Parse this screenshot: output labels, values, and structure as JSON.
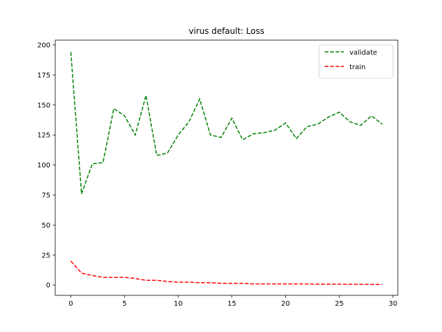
{
  "chart_data": {
    "type": "line",
    "title": "virus default: Loss",
    "xlabel": "",
    "ylabel": "",
    "xlim": [
      -1.45,
      30.45
    ],
    "ylim": [
      -8.5,
      204
    ],
    "xticks": [
      0,
      5,
      10,
      15,
      20,
      25,
      30
    ],
    "yticks": [
      0,
      25,
      50,
      75,
      100,
      125,
      150,
      175,
      200
    ],
    "grid": false,
    "legend_position": "top-right",
    "series": [
      {
        "name": "validate",
        "color": "#008000",
        "dash": "dashed",
        "x": [
          0,
          1,
          2,
          3,
          4,
          5,
          6,
          7,
          8,
          9,
          10,
          11,
          12,
          13,
          14,
          15,
          16,
          17,
          18,
          19,
          20,
          21,
          22,
          23,
          24,
          25,
          26,
          27,
          28,
          29
        ],
        "y": [
          194,
          76,
          101,
          102,
          147,
          141,
          125,
          158,
          108,
          110,
          125,
          136,
          155,
          125,
          123,
          139,
          121,
          126,
          127,
          129,
          135,
          122,
          132,
          134,
          140,
          144,
          136,
          133,
          141,
          134
        ]
      },
      {
        "name": "train",
        "color": "#ff0000",
        "dash": "dashed",
        "x": [
          0,
          1,
          2,
          3,
          4,
          5,
          6,
          7,
          8,
          9,
          10,
          11,
          12,
          13,
          14,
          15,
          16,
          17,
          18,
          19,
          20,
          21,
          22,
          23,
          24,
          25,
          26,
          27,
          28,
          29
        ],
        "y": [
          20,
          10,
          8,
          6.5,
          6.5,
          6.5,
          5.5,
          4,
          4,
          3,
          2.5,
          2.5,
          2,
          2,
          1.5,
          1.5,
          1.5,
          1,
          1,
          1,
          1,
          1,
          1,
          0.8,
          0.8,
          0.8,
          0.7,
          0.7,
          0.6,
          0.6
        ]
      }
    ]
  }
}
